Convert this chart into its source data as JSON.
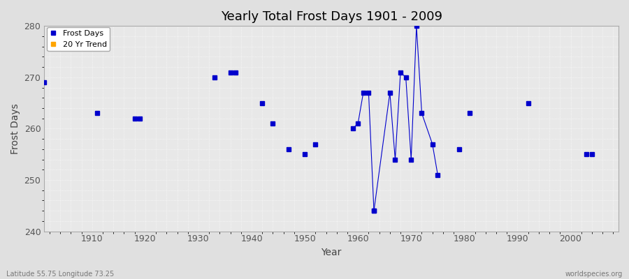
{
  "title": "Yearly Total Frost Days 1901 - 2009",
  "xlabel": "Year",
  "ylabel": "Frost Days",
  "subtitle_lat": "Latitude 55.75 Longitude 73.25",
  "watermark": "worldspecies.org",
  "xlim": [
    1901,
    2009
  ],
  "ylim": [
    240,
    280
  ],
  "yticks": [
    240,
    250,
    260,
    270,
    280
  ],
  "xticks": [
    1910,
    1920,
    1930,
    1940,
    1950,
    1960,
    1970,
    1980,
    1990,
    2000
  ],
  "background_color": "#e0e0e0",
  "plot_background": "#e8e8e8",
  "grid_color": "#ffffff",
  "frost_days_color": "#0000cc",
  "trend_color": "#ffa500",
  "isolated_points": [
    [
      1901,
      269
    ],
    [
      1911,
      263
    ],
    [
      1933,
      270
    ],
    [
      1936,
      271
    ],
    [
      1937,
      271
    ],
    [
      1942,
      265
    ],
    [
      1944,
      261
    ],
    [
      1947,
      256
    ],
    [
      1950,
      255
    ],
    [
      1952,
      257
    ],
    [
      1979,
      256
    ],
    [
      1981,
      263
    ],
    [
      1992,
      265
    ],
    [
      2003,
      255
    ],
    [
      2004,
      255
    ]
  ],
  "line_segment_1": {
    "years": [
      1918,
      1919
    ],
    "values": [
      262,
      262
    ]
  },
  "line_segment_2": {
    "years": [
      1959,
      1960,
      1961,
      1962,
      1963
    ],
    "values": [
      260,
      261,
      267,
      267,
      244
    ]
  },
  "line_segment_3": {
    "years": [
      1963,
      1966,
      1967,
      1968,
      1969,
      1970,
      1971,
      1972,
      1974,
      1975
    ],
    "values": [
      244,
      267,
      254,
      271,
      270,
      254,
      280,
      263,
      257,
      251
    ]
  }
}
